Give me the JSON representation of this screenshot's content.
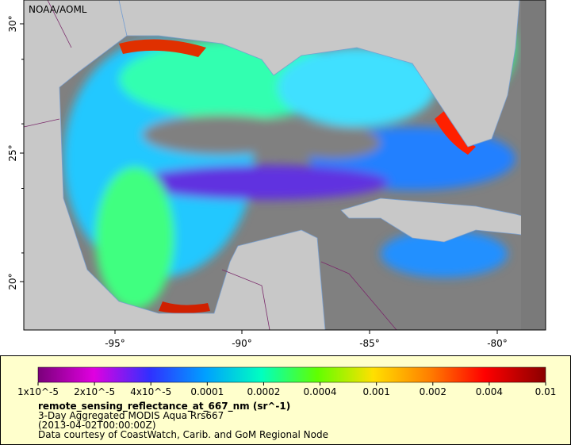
{
  "credit": "NOAA/AOML",
  "axes": {
    "lon_labels": [
      "-95°",
      "-90°",
      "-85°",
      "-80°"
    ],
    "lat_labels": [
      "30°",
      "25°",
      "20°"
    ]
  },
  "colorbar": {
    "labels": [
      "1x10^-5",
      "2x10^-5",
      "4x10^-5",
      "0.0001",
      "0.0002",
      "0.0004",
      "0.001",
      "0.002",
      "0.004",
      "0.01"
    ]
  },
  "caption": {
    "title": "remote_sensing_reflectance_at_667_nm (sr^-1)",
    "line1": "3-Day Aggregated MODIS Aqua Rrs667",
    "line2": "(2013-04-02T00:00:00Z)",
    "line3": "Data courtesy of CoastWatch, Carib. and GoM Regional Node"
  }
}
